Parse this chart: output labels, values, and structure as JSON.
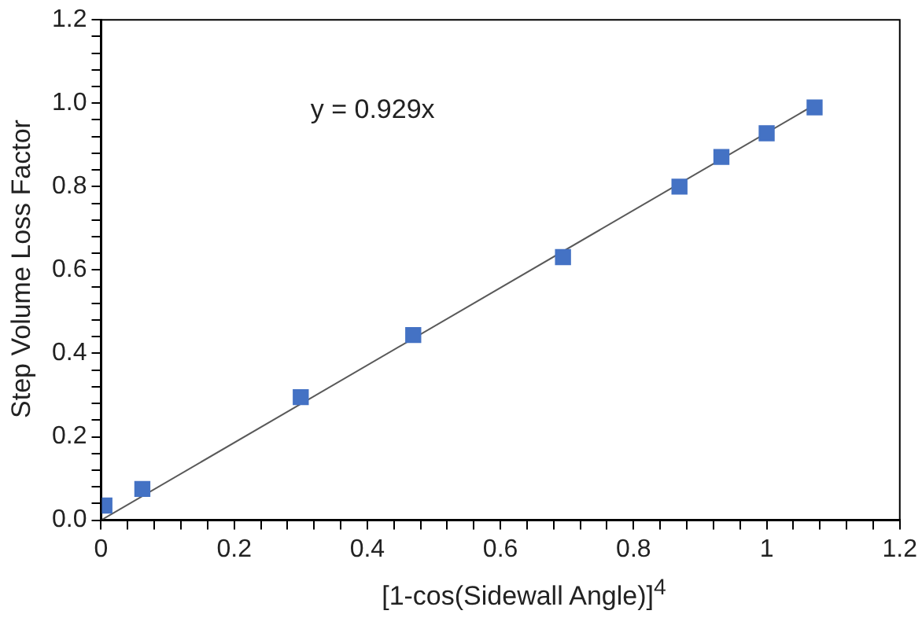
{
  "chart_data": {
    "type": "scatter",
    "xlabel": "[1-cos(Sidewall Angle)]$^{4}$",
    "ylabel": "Step Volume Loss Factor",
    "annotations": [
      "y = 0.929x"
    ],
    "series": [
      {
        "color": "#4472c4",
        "marker": "square",
        "x": [
          0.005,
          0.062,
          0.3,
          0.469,
          0.694,
          0.869,
          0.932,
          1.0,
          1.072
        ],
        "values": [
          0.035,
          0.075,
          0.295,
          0.444,
          0.631,
          0.8,
          0.871,
          0.928,
          0.99
        ]
      },
      {
        "type": "line",
        "color": "#595959",
        "marker": "none",
        "x": [
          0,
          1.072
        ],
        "values": [
          0,
          0.996
        ]
      }
    ],
    "xlim": [
      0,
      1.2
    ],
    "xticks": [
      0,
      {
        "value": 0.04,
        "label": null
      },
      {
        "value": 0.08,
        "label": null
      },
      {
        "value": 0.12,
        "label": null
      },
      {
        "value": 0.16,
        "label": null
      },
      0.2,
      {
        "value": 0.24,
        "label": null
      },
      {
        "value": 0.28,
        "label": null
      },
      {
        "value": 0.32,
        "label": null
      },
      {
        "value": 0.36,
        "label": null
      },
      0.4,
      {
        "value": 0.44,
        "label": null
      },
      {
        "value": 0.48,
        "label": null
      },
      {
        "value": 0.52,
        "label": null
      },
      {
        "value": 0.56,
        "label": null
      },
      0.6,
      {
        "value": 0.64,
        "label": null
      },
      {
        "value": 0.68,
        "label": null
      },
      {
        "value": 0.72,
        "label": null
      },
      {
        "value": 0.76,
        "label": null
      },
      0.8,
      {
        "value": 0.84,
        "label": null
      },
      {
        "value": 0.88,
        "label": null
      },
      {
        "value": 0.92,
        "label": null
      },
      {
        "value": 0.96,
        "label": null
      },
      1,
      {
        "value": 1.04,
        "label": null
      },
      {
        "value": 1.08,
        "label": null
      },
      {
        "value": 1.12,
        "label": null
      },
      {
        "value": 1.16,
        "label": null
      },
      1.2
    ],
    "ylim": [
      0,
      1.2
    ],
    "yticks": [
      {
        "value": 0,
        "label": "0.0"
      },
      {
        "value": 0.04,
        "label": null
      },
      {
        "value": 0.08,
        "label": null
      },
      {
        "value": 0.12,
        "label": null
      },
      {
        "value": 0.16,
        "label": null
      },
      {
        "value": 0.2,
        "label": "0.2"
      },
      {
        "value": 0.24,
        "label": null
      },
      {
        "value": 0.28,
        "label": null
      },
      {
        "value": 0.32,
        "label": null
      },
      {
        "value": 0.36,
        "label": null
      },
      {
        "value": 0.4,
        "label": "0.4"
      },
      {
        "value": 0.44,
        "label": null
      },
      {
        "value": 0.48,
        "label": null
      },
      {
        "value": 0.52,
        "label": null
      },
      {
        "value": 0.56,
        "label": null
      },
      {
        "value": 0.6,
        "label": "0.6"
      },
      {
        "value": 0.64,
        "label": null
      },
      {
        "value": 0.68,
        "label": null
      },
      {
        "value": 0.72,
        "label": null
      },
      {
        "value": 0.76,
        "label": null
      },
      {
        "value": 0.8,
        "label": "0.8"
      },
      {
        "value": 0.84,
        "label": null
      },
      {
        "value": 0.88,
        "label": null
      },
      {
        "value": 0.92,
        "label": null
      },
      {
        "value": 0.96,
        "label": null
      },
      {
        "value": 1.0,
        "label": "1.0"
      },
      {
        "value": 1.04,
        "label": null
      },
      {
        "value": 1.08,
        "label": null
      },
      {
        "value": 1.12,
        "label": null
      },
      {
        "value": 1.16,
        "label": null
      },
      {
        "value": 1.2,
        "label": "1.2"
      }
    ],
    "grid": false,
    "legend": false
  }
}
